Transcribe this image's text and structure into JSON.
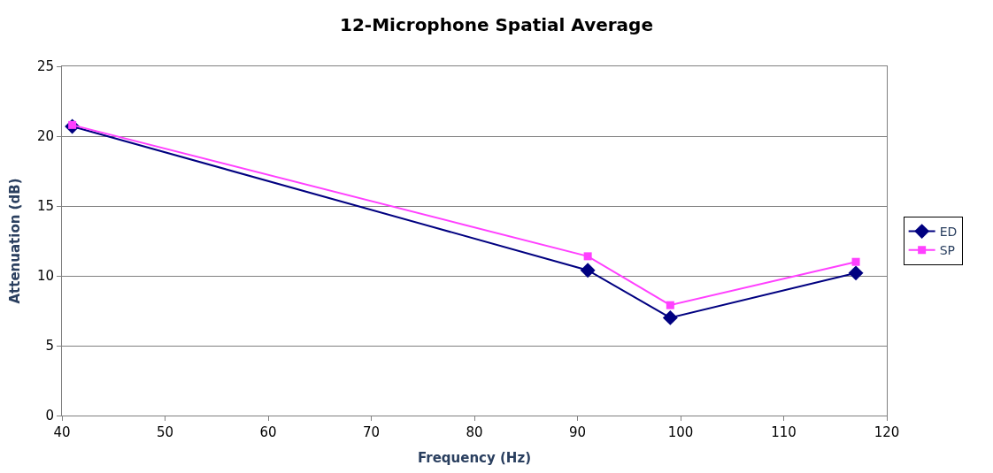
{
  "chart_data": {
    "type": "line",
    "title": "12-Microphone Spatial Average",
    "xlabel": "Frequency (Hz)",
    "ylabel": "Attenuation (dB)",
    "x": [
      41,
      91,
      99,
      117
    ],
    "series": [
      {
        "name": "ED",
        "color": "#000080",
        "values": [
          20.7,
          10.4,
          7.0,
          10.2
        ],
        "marker": "diamond"
      },
      {
        "name": "SP",
        "color": "#ff40ff",
        "values": [
          20.8,
          11.4,
          7.9,
          11.0
        ],
        "marker": "square"
      }
    ],
    "xlim": [
      40,
      120
    ],
    "xticks": [
      40,
      50,
      60,
      70,
      80,
      90,
      100,
      110,
      120
    ],
    "ylim": [
      0,
      25
    ],
    "yticks": [
      0,
      5,
      10,
      15,
      20,
      25
    ],
    "grid": "y",
    "legend": "right"
  }
}
